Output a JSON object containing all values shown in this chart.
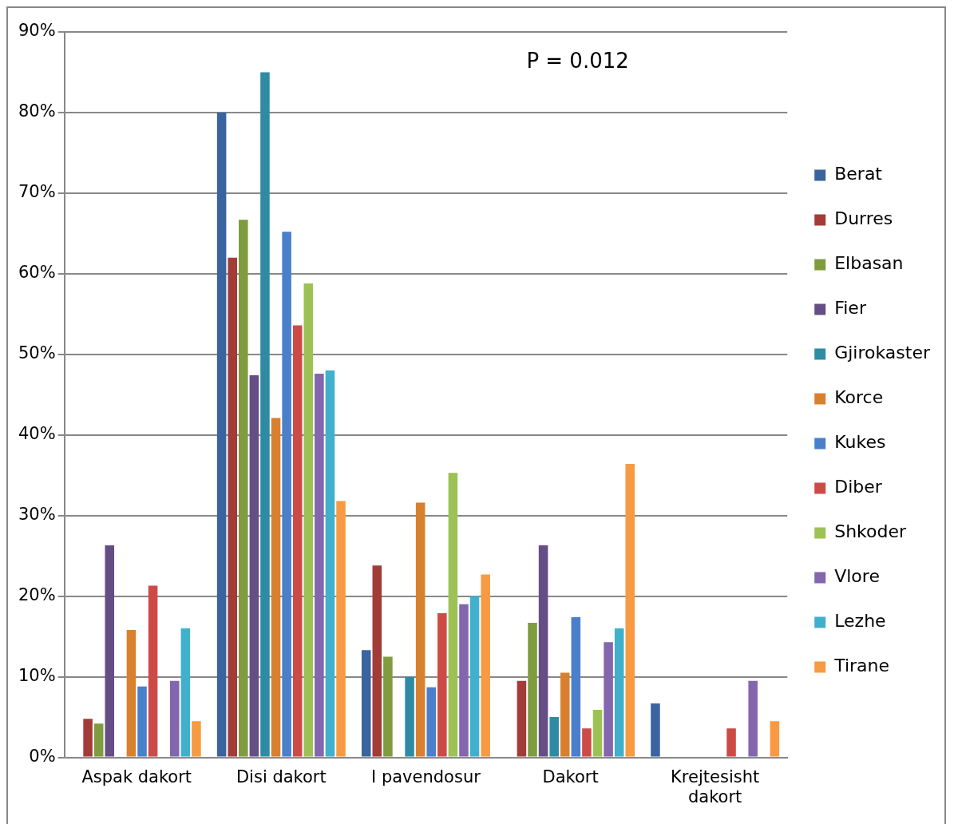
{
  "chart_data": {
    "type": "bar",
    "categories": [
      "Aspak dakort",
      "Disi dakort",
      "I pavendosur",
      "Dakort",
      "Krejtesisht dakort"
    ],
    "series": [
      {
        "name": "Berat",
        "color": "#3a64a0",
        "values": [
          0,
          80,
          13.3,
          0,
          6.7
        ]
      },
      {
        "name": "Durres",
        "color": "#a33b39",
        "values": [
          4.8,
          62,
          23.8,
          9.5,
          0
        ]
      },
      {
        "name": "Elbasan",
        "color": "#7f9c3f",
        "values": [
          4.2,
          66.7,
          12.5,
          16.7,
          0
        ]
      },
      {
        "name": "Fier",
        "color": "#654d86",
        "values": [
          26.3,
          47.4,
          0,
          26.3,
          0
        ]
      },
      {
        "name": "Gjirokaster",
        "color": "#2f8ba3",
        "values": [
          0,
          85,
          10,
          5,
          0
        ]
      },
      {
        "name": "Korce",
        "color": "#d9802f",
        "values": [
          15.8,
          42.1,
          31.6,
          10.5,
          0
        ]
      },
      {
        "name": "Kukes",
        "color": "#4a7fcb",
        "values": [
          8.8,
          65.2,
          8.7,
          17.4,
          0
        ]
      },
      {
        "name": "Diber",
        "color": "#cd4b47",
        "values": [
          21.3,
          53.6,
          17.9,
          3.6,
          3.6
        ]
      },
      {
        "name": "Shkoder",
        "color": "#9cc255",
        "values": [
          0,
          58.8,
          35.3,
          5.9,
          0
        ]
      },
      {
        "name": "Vlore",
        "color": "#8366ad",
        "values": [
          9.5,
          47.6,
          19,
          14.3,
          9.5
        ]
      },
      {
        "name": "Lezhe",
        "color": "#40b0cc",
        "values": [
          16,
          48,
          20,
          16,
          0
        ]
      },
      {
        "name": "Tirane",
        "color": "#f79a41",
        "values": [
          4.5,
          31.8,
          22.7,
          36.4,
          4.5
        ]
      }
    ],
    "ylim": [
      0,
      90
    ],
    "yticks": [
      {
        "value": 0,
        "label": "0%"
      },
      {
        "value": 10,
        "label": "10%"
      },
      {
        "value": 20,
        "label": "20%"
      },
      {
        "value": 30,
        "label": "30%"
      },
      {
        "value": 40,
        "label": "40%"
      },
      {
        "value": 50,
        "label": "50%"
      },
      {
        "value": 60,
        "label": "60%"
      },
      {
        "value": 70,
        "label": "70%"
      },
      {
        "value": 80,
        "label": "80%"
      },
      {
        "value": 90,
        "label": "90%"
      }
    ],
    "grid": "y",
    "legend": "right",
    "annotations": [
      "P = 0.012"
    ]
  }
}
